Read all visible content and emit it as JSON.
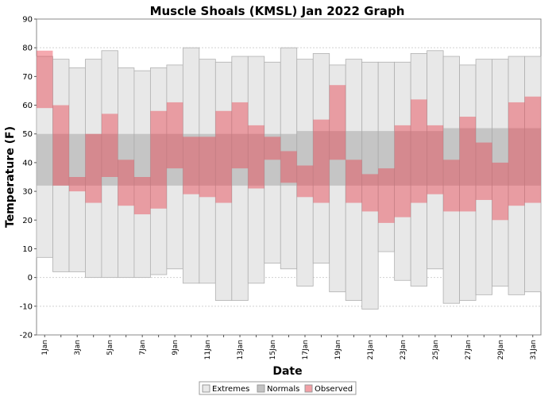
{
  "chart_data": {
    "type": "bar",
    "title": "Muscle Shoals (KMSL) Jan 2022 Graph",
    "xlabel": "Date",
    "ylabel": "Temperature (F)",
    "ylim": [
      -20,
      90
    ],
    "y_ticks": [
      -20,
      -10,
      0,
      10,
      20,
      30,
      40,
      50,
      60,
      70,
      80,
      90
    ],
    "grid": true,
    "legend_position": "bottom-center",
    "categories": [
      "1 Jan",
      "2 Jan",
      "3 Jan",
      "4 Jan",
      "5 Jan",
      "6 Jan",
      "7 Jan",
      "8 Jan",
      "9 Jan",
      "10 Jan",
      "11 Jan",
      "12 Jan",
      "13 Jan",
      "14 Jan",
      "15 Jan",
      "16 Jan",
      "17 Jan",
      "18 Jan",
      "19 Jan",
      "20 Jan",
      "21 Jan",
      "22 Jan",
      "23 Jan",
      "24 Jan",
      "25 Jan",
      "26 Jan",
      "27 Jan",
      "28 Jan",
      "29 Jan",
      "30 Jan",
      "31 Jan"
    ],
    "x_tick_labels": [
      "1Jan",
      "",
      "3Jan",
      "",
      "5Jan",
      "",
      "7Jan",
      "",
      "9Jan",
      "",
      "11Jan",
      "",
      "13Jan",
      "",
      "15Jan",
      "",
      "17Jan",
      "",
      "19Jan",
      "",
      "21Jan",
      "",
      "23Jan",
      "",
      "25Jan",
      "",
      "27Jan",
      "",
      "29Jan",
      "",
      "31Jan"
    ],
    "legend": {
      "extremes": "Extremes",
      "normals": "Normals",
      "observed": "Observed"
    },
    "colors": {
      "extremes_fill": "#e8e8e8",
      "extremes_stroke": "#b0b0b0",
      "normals_fill": "#a8a8a8",
      "observed_fill": "#e8404e",
      "grid": "#d0d0d0"
    },
    "series": [
      {
        "name": "Extremes",
        "high": [
          77,
          76,
          73,
          76,
          79,
          73,
          72,
          73,
          74,
          80,
          76,
          75,
          77,
          77,
          75,
          80,
          76,
          78,
          74,
          76,
          75,
          75,
          75,
          78,
          79,
          77,
          74,
          76,
          76,
          77,
          77
        ],
        "low": [
          7,
          2,
          2,
          0,
          0,
          0,
          0,
          1,
          3,
          -2,
          -2,
          -8,
          -8,
          -2,
          5,
          3,
          -3,
          5,
          -5,
          -8,
          -11,
          9,
          -1,
          -3,
          3,
          -9,
          -8,
          -6,
          -3,
          -6,
          -5
        ]
      },
      {
        "name": "Normals",
        "high": [
          50,
          50,
          50,
          50,
          50,
          50,
          50,
          50,
          50,
          50,
          50,
          50,
          50,
          50,
          50,
          50,
          51,
          51,
          51,
          51,
          51,
          51,
          51,
          51,
          51,
          52,
          52,
          52,
          52,
          52,
          52
        ],
        "low": [
          32,
          32,
          32,
          32,
          32,
          32,
          32,
          32,
          32,
          32,
          32,
          32,
          32,
          32,
          32,
          32,
          32,
          32,
          32,
          32,
          32,
          32,
          32,
          32,
          32,
          32,
          32,
          32,
          32,
          32,
          32
        ]
      },
      {
        "name": "Observed",
        "high": [
          79,
          60,
          35,
          50,
          57,
          41,
          35,
          58,
          61,
          49,
          49,
          58,
          61,
          53,
          49,
          44,
          39,
          55,
          67,
          41,
          36,
          38,
          53,
          62,
          53,
          41,
          56,
          47,
          40,
          61,
          63
        ],
        "low": [
          59,
          32,
          30,
          26,
          35,
          25,
          22,
          24,
          38,
          29,
          28,
          26,
          38,
          31,
          41,
          33,
          28,
          26,
          41,
          26,
          23,
          19,
          21,
          26,
          29,
          23,
          23,
          27,
          20,
          25,
          26
        ]
      }
    ]
  }
}
